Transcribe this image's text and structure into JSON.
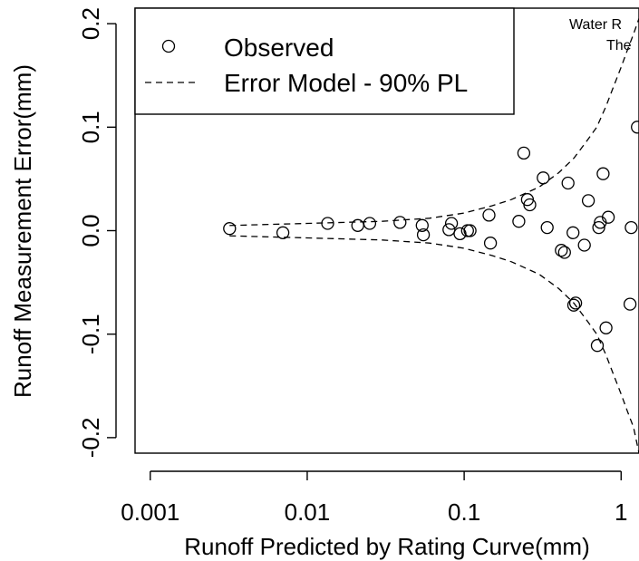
{
  "chart_data": {
    "type": "scatter",
    "xscale": "log",
    "xlim": [
      0.0008,
      1.3
    ],
    "ylim": [
      -0.215,
      0.215
    ],
    "xticks": [
      0.001,
      0.01,
      0.1,
      1
    ],
    "xtick_labels": [
      "0.001",
      "0.01",
      "0.1",
      "1"
    ],
    "yticks": [
      -0.2,
      -0.1,
      0.0,
      0.1,
      0.2
    ],
    "ytick_labels": [
      "-0.2",
      "-0.1",
      "0.0",
      "0.1",
      "0.2"
    ],
    "xlabel": "Runoff Predicted by Rating Curve(mm)",
    "ylabel": "Runoff Measurement Error(mm)",
    "grid": false,
    "legend_position": "top-left",
    "legend": [
      {
        "label": "Observed",
        "style": "open-circle"
      },
      {
        "label": "Error Model - 90% PL",
        "style": "dashed-line"
      }
    ],
    "annotation_lines": [
      "Water R",
      "The"
    ],
    "series": [
      {
        "name": "Observed",
        "style": "open-circle",
        "x": [
          0.0032,
          0.007,
          0.0135,
          0.021,
          0.025,
          0.039,
          0.054,
          0.055,
          0.08,
          0.083,
          0.094,
          0.105,
          0.109,
          0.144,
          0.147,
          0.223,
          0.24,
          0.253,
          0.262,
          0.319,
          0.338,
          0.416,
          0.436,
          0.459,
          0.494,
          0.499,
          0.513,
          0.583,
          0.618,
          0.705,
          0.72,
          0.737,
          0.768,
          0.801,
          0.828,
          1.14,
          1.16,
          1.27
        ],
        "y": [
          0.002,
          -0.002,
          0.007,
          0.005,
          0.007,
          0.008,
          0.005,
          -0.004,
          0.001,
          0.007,
          -0.003,
          0.0,
          0.0,
          0.015,
          -0.012,
          0.009,
          0.075,
          0.03,
          0.025,
          0.051,
          0.003,
          -0.019,
          -0.021,
          0.046,
          -0.002,
          -0.072,
          -0.07,
          -0.014,
          0.029,
          -0.111,
          0.003,
          0.008,
          0.055,
          -0.094,
          0.013,
          -0.071,
          0.003,
          0.1
        ]
      },
      {
        "name": "Error Model - 90% PL",
        "style": "dashed-line",
        "x": [
          0.0032,
          0.01,
          0.03,
          0.06,
          0.1,
          0.15,
          0.2,
          0.3,
          0.4,
          0.5,
          0.6,
          0.7,
          0.8,
          0.9,
          1.0,
          1.1,
          1.2,
          1.3
        ],
        "y": [
          0.005,
          0.007,
          0.009,
          0.012,
          0.017,
          0.024,
          0.03,
          0.042,
          0.056,
          0.07,
          0.086,
          0.1,
          0.12,
          0.14,
          0.158,
          0.175,
          0.19,
          0.205
        ]
      },
      {
        "style": "dashed-line",
        "x": [
          0.0032,
          0.01,
          0.03,
          0.06,
          0.1,
          0.15,
          0.2,
          0.3,
          0.4,
          0.5,
          0.6,
          0.7,
          0.8,
          0.9,
          1.0,
          1.1,
          1.2,
          1.3
        ],
        "y": [
          -0.005,
          -0.007,
          -0.009,
          -0.012,
          -0.017,
          -0.024,
          -0.03,
          -0.042,
          -0.056,
          -0.07,
          -0.086,
          -0.1,
          -0.12,
          -0.14,
          -0.158,
          -0.175,
          -0.19,
          -0.215
        ]
      }
    ]
  }
}
